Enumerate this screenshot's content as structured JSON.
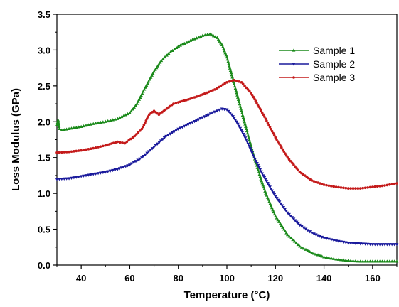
{
  "chart_data": {
    "type": "line",
    "title": "",
    "xlabel": "Temperature (°C)",
    "ylabel": "Loss Modulus (GPa)",
    "xlim": [
      30,
      170
    ],
    "ylim": [
      0.0,
      3.5
    ],
    "xticks": [
      40,
      60,
      80,
      100,
      120,
      140,
      160
    ],
    "xtick_labels": [
      "40",
      "60",
      "80",
      "100",
      "120",
      "140",
      "160"
    ],
    "yticks": [
      0.0,
      0.5,
      1.0,
      1.5,
      2.0,
      2.5,
      3.0,
      3.5
    ],
    "ytick_labels": [
      "0.0",
      "0.5",
      "1.0",
      "1.5",
      "2.0",
      "2.5",
      "3.0",
      "3.5"
    ],
    "grid": false,
    "legend_position": "top-right",
    "series": [
      {
        "name": "Sample 1",
        "color": "#1a8a1a",
        "marker": "triangle-up",
        "x": [
          30,
          30.5,
          31,
          32,
          35,
          40,
          45,
          50,
          55,
          60,
          63,
          66,
          70,
          73,
          76,
          80,
          85,
          90,
          93,
          96,
          98,
          100,
          102,
          104,
          106,
          108,
          110,
          112,
          114,
          116,
          120,
          125,
          130,
          135,
          140,
          145,
          150,
          155,
          160,
          165,
          170
        ],
        "y": [
          1.95,
          2.02,
          1.9,
          1.88,
          1.9,
          1.93,
          1.97,
          2.0,
          2.04,
          2.12,
          2.25,
          2.45,
          2.7,
          2.85,
          2.95,
          3.05,
          3.13,
          3.2,
          3.22,
          3.17,
          3.07,
          2.9,
          2.65,
          2.4,
          2.15,
          1.9,
          1.65,
          1.42,
          1.2,
          1.0,
          0.68,
          0.42,
          0.26,
          0.17,
          0.11,
          0.08,
          0.06,
          0.05,
          0.05,
          0.05,
          0.05
        ]
      },
      {
        "name": "Sample 2",
        "color": "#1a1a9c",
        "marker": "triangle-down",
        "x": [
          30,
          35,
          40,
          45,
          50,
          55,
          60,
          65,
          70,
          75,
          80,
          85,
          90,
          95,
          98,
          100,
          102,
          104,
          106,
          108,
          110,
          112,
          115,
          120,
          125,
          130,
          135,
          140,
          145,
          150,
          155,
          160,
          165,
          170
        ],
        "y": [
          1.2,
          1.21,
          1.24,
          1.27,
          1.3,
          1.34,
          1.4,
          1.5,
          1.65,
          1.8,
          1.9,
          1.98,
          2.06,
          2.14,
          2.18,
          2.17,
          2.1,
          2.0,
          1.88,
          1.75,
          1.6,
          1.45,
          1.25,
          0.96,
          0.73,
          0.56,
          0.45,
          0.38,
          0.34,
          0.31,
          0.3,
          0.29,
          0.29,
          0.29
        ]
      },
      {
        "name": "Sample 3",
        "color": "#c41a1a",
        "marker": "circle",
        "x": [
          30,
          35,
          40,
          45,
          50,
          55,
          58,
          62,
          65,
          68,
          70,
          72,
          74,
          76,
          78,
          80,
          85,
          90,
          95,
          100,
          103,
          106,
          110,
          115,
          120,
          125,
          130,
          135,
          140,
          145,
          150,
          155,
          160,
          165,
          170
        ],
        "y": [
          1.57,
          1.58,
          1.6,
          1.63,
          1.67,
          1.72,
          1.7,
          1.8,
          1.9,
          2.1,
          2.15,
          2.1,
          2.15,
          2.2,
          2.25,
          2.27,
          2.32,
          2.38,
          2.45,
          2.55,
          2.58,
          2.55,
          2.4,
          2.1,
          1.78,
          1.5,
          1.3,
          1.18,
          1.12,
          1.09,
          1.07,
          1.07,
          1.09,
          1.11,
          1.14
        ]
      }
    ]
  }
}
